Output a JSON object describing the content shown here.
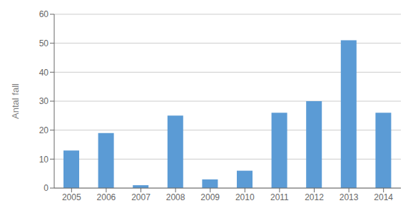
{
  "chart_data": {
    "type": "bar",
    "categories": [
      "2005",
      "2006",
      "2007",
      "2008",
      "2009",
      "2010",
      "2011",
      "2012",
      "2013",
      "2014"
    ],
    "values": [
      13,
      19,
      1,
      25,
      3,
      6,
      26,
      30,
      51,
      26
    ],
    "color": "#5b9bd5",
    "ylabel": "Antal fall",
    "ylim": [
      0,
      60
    ],
    "yticks": [
      0,
      10,
      20,
      30,
      40,
      50,
      60
    ],
    "grid": true
  }
}
